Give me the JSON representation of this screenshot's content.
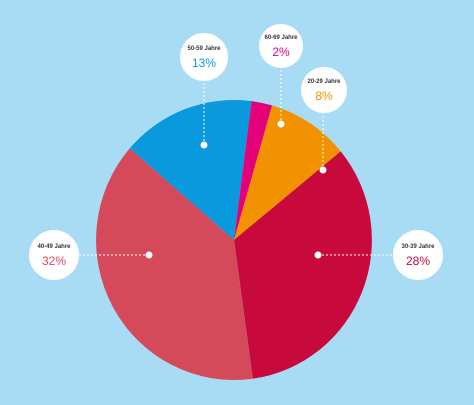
{
  "colors": {
    "background": "#a8dcf5"
  },
  "chart_data": {
    "type": "pie",
    "start_angle_deg": 0,
    "slices": [
      {
        "label": "20-29 Jahre",
        "value_text": "8%",
        "value": 8,
        "color": "#f39200"
      },
      {
        "label": "30-39 Jahre",
        "value_text": "28%",
        "value": 28,
        "color": "#c8093c"
      },
      {
        "label": "40-49 Jahre",
        "value_text": "32%",
        "value": 32,
        "color": "#d44a5a"
      },
      {
        "label": "50-59 Jahre",
        "value_text": "13%",
        "value": 13,
        "color": "#0999dc"
      },
      {
        "label": "60-69 Jahre",
        "value_text": "2%",
        "value": 2,
        "color": "#e4007b"
      }
    ]
  }
}
